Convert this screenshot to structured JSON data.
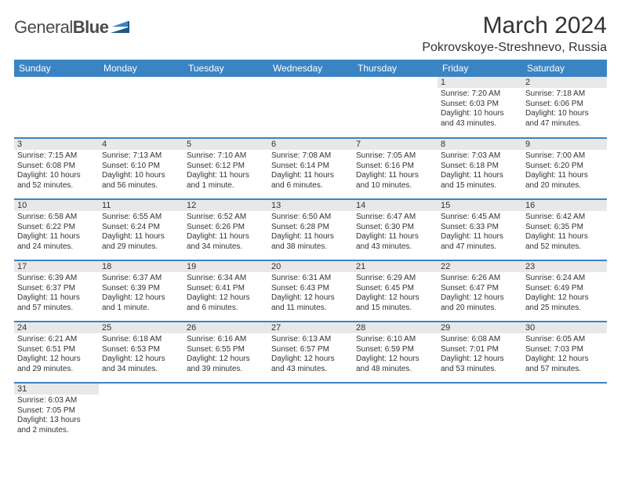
{
  "logo": {
    "word1": "General",
    "word2": "Blue"
  },
  "title": "March 2024",
  "location": "Pokrovskoye-Streshnevo, Russia",
  "header_bg": "#3b84c4",
  "day_bg": "#e8e8e8",
  "text_color": "#333333",
  "font_family": "Arial",
  "daynames": [
    "Sunday",
    "Monday",
    "Tuesday",
    "Wednesday",
    "Thursday",
    "Friday",
    "Saturday"
  ],
  "weeks": [
    [
      null,
      null,
      null,
      null,
      null,
      {
        "n": "1",
        "sr": "Sunrise: 7:20 AM",
        "ss": "Sunset: 6:03 PM",
        "dl1": "Daylight: 10 hours",
        "dl2": "and 43 minutes."
      },
      {
        "n": "2",
        "sr": "Sunrise: 7:18 AM",
        "ss": "Sunset: 6:06 PM",
        "dl1": "Daylight: 10 hours",
        "dl2": "and 47 minutes."
      }
    ],
    [
      {
        "n": "3",
        "sr": "Sunrise: 7:15 AM",
        "ss": "Sunset: 6:08 PM",
        "dl1": "Daylight: 10 hours",
        "dl2": "and 52 minutes."
      },
      {
        "n": "4",
        "sr": "Sunrise: 7:13 AM",
        "ss": "Sunset: 6:10 PM",
        "dl1": "Daylight: 10 hours",
        "dl2": "and 56 minutes."
      },
      {
        "n": "5",
        "sr": "Sunrise: 7:10 AM",
        "ss": "Sunset: 6:12 PM",
        "dl1": "Daylight: 11 hours",
        "dl2": "and 1 minute."
      },
      {
        "n": "6",
        "sr": "Sunrise: 7:08 AM",
        "ss": "Sunset: 6:14 PM",
        "dl1": "Daylight: 11 hours",
        "dl2": "and 6 minutes."
      },
      {
        "n": "7",
        "sr": "Sunrise: 7:05 AM",
        "ss": "Sunset: 6:16 PM",
        "dl1": "Daylight: 11 hours",
        "dl2": "and 10 minutes."
      },
      {
        "n": "8",
        "sr": "Sunrise: 7:03 AM",
        "ss": "Sunset: 6:18 PM",
        "dl1": "Daylight: 11 hours",
        "dl2": "and 15 minutes."
      },
      {
        "n": "9",
        "sr": "Sunrise: 7:00 AM",
        "ss": "Sunset: 6:20 PM",
        "dl1": "Daylight: 11 hours",
        "dl2": "and 20 minutes."
      }
    ],
    [
      {
        "n": "10",
        "sr": "Sunrise: 6:58 AM",
        "ss": "Sunset: 6:22 PM",
        "dl1": "Daylight: 11 hours",
        "dl2": "and 24 minutes."
      },
      {
        "n": "11",
        "sr": "Sunrise: 6:55 AM",
        "ss": "Sunset: 6:24 PM",
        "dl1": "Daylight: 11 hours",
        "dl2": "and 29 minutes."
      },
      {
        "n": "12",
        "sr": "Sunrise: 6:52 AM",
        "ss": "Sunset: 6:26 PM",
        "dl1": "Daylight: 11 hours",
        "dl2": "and 34 minutes."
      },
      {
        "n": "13",
        "sr": "Sunrise: 6:50 AM",
        "ss": "Sunset: 6:28 PM",
        "dl1": "Daylight: 11 hours",
        "dl2": "and 38 minutes."
      },
      {
        "n": "14",
        "sr": "Sunrise: 6:47 AM",
        "ss": "Sunset: 6:30 PM",
        "dl1": "Daylight: 11 hours",
        "dl2": "and 43 minutes."
      },
      {
        "n": "15",
        "sr": "Sunrise: 6:45 AM",
        "ss": "Sunset: 6:33 PM",
        "dl1": "Daylight: 11 hours",
        "dl2": "and 47 minutes."
      },
      {
        "n": "16",
        "sr": "Sunrise: 6:42 AM",
        "ss": "Sunset: 6:35 PM",
        "dl1": "Daylight: 11 hours",
        "dl2": "and 52 minutes."
      }
    ],
    [
      {
        "n": "17",
        "sr": "Sunrise: 6:39 AM",
        "ss": "Sunset: 6:37 PM",
        "dl1": "Daylight: 11 hours",
        "dl2": "and 57 minutes."
      },
      {
        "n": "18",
        "sr": "Sunrise: 6:37 AM",
        "ss": "Sunset: 6:39 PM",
        "dl1": "Daylight: 12 hours",
        "dl2": "and 1 minute."
      },
      {
        "n": "19",
        "sr": "Sunrise: 6:34 AM",
        "ss": "Sunset: 6:41 PM",
        "dl1": "Daylight: 12 hours",
        "dl2": "and 6 minutes."
      },
      {
        "n": "20",
        "sr": "Sunrise: 6:31 AM",
        "ss": "Sunset: 6:43 PM",
        "dl1": "Daylight: 12 hours",
        "dl2": "and 11 minutes."
      },
      {
        "n": "21",
        "sr": "Sunrise: 6:29 AM",
        "ss": "Sunset: 6:45 PM",
        "dl1": "Daylight: 12 hours",
        "dl2": "and 15 minutes."
      },
      {
        "n": "22",
        "sr": "Sunrise: 6:26 AM",
        "ss": "Sunset: 6:47 PM",
        "dl1": "Daylight: 12 hours",
        "dl2": "and 20 minutes."
      },
      {
        "n": "23",
        "sr": "Sunrise: 6:24 AM",
        "ss": "Sunset: 6:49 PM",
        "dl1": "Daylight: 12 hours",
        "dl2": "and 25 minutes."
      }
    ],
    [
      {
        "n": "24",
        "sr": "Sunrise: 6:21 AM",
        "ss": "Sunset: 6:51 PM",
        "dl1": "Daylight: 12 hours",
        "dl2": "and 29 minutes."
      },
      {
        "n": "25",
        "sr": "Sunrise: 6:18 AM",
        "ss": "Sunset: 6:53 PM",
        "dl1": "Daylight: 12 hours",
        "dl2": "and 34 minutes."
      },
      {
        "n": "26",
        "sr": "Sunrise: 6:16 AM",
        "ss": "Sunset: 6:55 PM",
        "dl1": "Daylight: 12 hours",
        "dl2": "and 39 minutes."
      },
      {
        "n": "27",
        "sr": "Sunrise: 6:13 AM",
        "ss": "Sunset: 6:57 PM",
        "dl1": "Daylight: 12 hours",
        "dl2": "and 43 minutes."
      },
      {
        "n": "28",
        "sr": "Sunrise: 6:10 AM",
        "ss": "Sunset: 6:59 PM",
        "dl1": "Daylight: 12 hours",
        "dl2": "and 48 minutes."
      },
      {
        "n": "29",
        "sr": "Sunrise: 6:08 AM",
        "ss": "Sunset: 7:01 PM",
        "dl1": "Daylight: 12 hours",
        "dl2": "and 53 minutes."
      },
      {
        "n": "30",
        "sr": "Sunrise: 6:05 AM",
        "ss": "Sunset: 7:03 PM",
        "dl1": "Daylight: 12 hours",
        "dl2": "and 57 minutes."
      }
    ],
    [
      {
        "n": "31",
        "sr": "Sunrise: 6:03 AM",
        "ss": "Sunset: 7:05 PM",
        "dl1": "Daylight: 13 hours",
        "dl2": "and 2 minutes."
      },
      null,
      null,
      null,
      null,
      null,
      null
    ]
  ]
}
